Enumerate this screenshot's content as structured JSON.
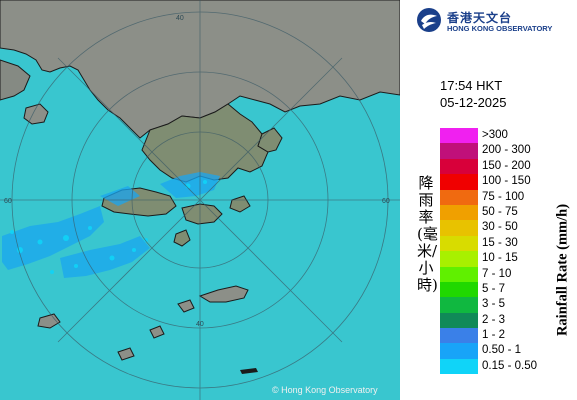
{
  "map": {
    "copyright": "© Hong Kong Observatory",
    "range_ring_labels": [
      "40",
      "60",
      "60",
      "40"
    ],
    "colors": {
      "sea": "#39c6cf",
      "land": "#8c8f88",
      "coast": "#1b1b1b",
      "rings": "#3a5a66"
    }
  },
  "panel": {
    "logo_cn": "香港天文台",
    "logo_en": "HONG KONG OBSERVATORY",
    "time": "17:54 HKT",
    "date": "05-12-2025",
    "axis_label_cn": "降雨率(毫米/小時)",
    "axis_label_en": "Rainfall Rate (mm/h)",
    "legend": [
      {
        "range": ">300",
        "color": "#f020f0"
      },
      {
        "range": "200 - 300",
        "color": "#c0107a"
      },
      {
        "range": "150 - 200",
        "color": "#d8003a"
      },
      {
        "range": "100 - 150",
        "color": "#f00000"
      },
      {
        "range": "75 - 100",
        "color": "#f06a10"
      },
      {
        "range": "50 - 75",
        "color": "#f0a000"
      },
      {
        "range": "30 - 50",
        "color": "#e8c200"
      },
      {
        "range": "15 - 30",
        "color": "#d8dc00"
      },
      {
        "range": "10 - 15",
        "color": "#a8f000"
      },
      {
        "range": "7 - 10",
        "color": "#60f000"
      },
      {
        "range": "5 - 7",
        "color": "#20d800"
      },
      {
        "range": "3 - 5",
        "color": "#10b840"
      },
      {
        "range": "2 - 3",
        "color": "#108a58"
      },
      {
        "range": "1 - 2",
        "color": "#3a80e8"
      },
      {
        "range": "0.50 - 1",
        "color": "#18a4f8"
      },
      {
        "range": "0.15 - 0.50",
        "color": "#10d4f8"
      }
    ]
  }
}
